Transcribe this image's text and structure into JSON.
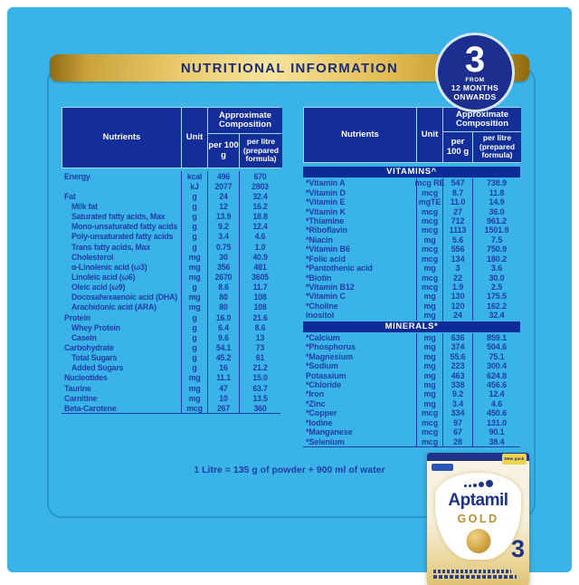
{
  "header": {
    "title": "NUTRITIONAL INFORMATION",
    "age_badge": {
      "number": "3",
      "line1": "FROM",
      "line2": "12 MONTHS",
      "line3": "ONWARDS"
    }
  },
  "table_headers": {
    "nutrients": "Nutrients",
    "unit": "Unit",
    "approx": "Approximate Composition",
    "per_100g": "per 100 g",
    "per_litre": "per litre (prepared formula)"
  },
  "left_table": {
    "rows": [
      [
        "Energy",
        "kcal",
        "496",
        "670",
        0
      ],
      [
        "",
        "kJ",
        "2077",
        "2803",
        0
      ],
      [
        "Fat",
        "g",
        "24",
        "32.4",
        0
      ],
      [
        "Milk fat",
        "g",
        "12",
        "16.2",
        1
      ],
      [
        "Saturated fatty acids, Max",
        "g",
        "13.9",
        "18.8",
        1
      ],
      [
        "Mono-unsaturated fatty acids",
        "g",
        "9.2",
        "12.4",
        1
      ],
      [
        "Poly-unsaturated fatty acids",
        "g",
        "3.4",
        "4.6",
        1
      ],
      [
        "Trans fatty acids, Max",
        "g",
        "0.75",
        "1.0",
        1
      ],
      [
        "Cholesterol",
        "mg",
        "30",
        "40.9",
        1
      ],
      [
        "α-Linolenic acid (ω3)",
        "mg",
        "356",
        "481",
        1
      ],
      [
        "Linoleic acid (ω6)",
        "mg",
        "2670",
        "3605",
        1
      ],
      [
        "Oleic acid (ω9)",
        "g",
        "8.6",
        "11.7",
        1
      ],
      [
        "Docosahexaenoic acid (DHA)",
        "mg",
        "80",
        "108",
        1
      ],
      [
        "Arachidonic acid (ARA)",
        "mg",
        "80",
        "108",
        1
      ],
      [
        "Protein",
        "g",
        "16.0",
        "21.6",
        0
      ],
      [
        "Whey Protein",
        "g",
        "6.4",
        "8.6",
        1
      ],
      [
        "Casein",
        "g",
        "9.6",
        "13",
        1
      ],
      [
        "Carbohydrate",
        "g",
        "54.1",
        "73",
        0
      ],
      [
        "Total Sugars",
        "g",
        "45.2",
        "61",
        1
      ],
      [
        "Added Sugars",
        "g",
        "16",
        "21.2",
        1
      ],
      [
        "Nucleotides",
        "mg",
        "11.1",
        "15.0",
        0
      ],
      [
        "Taurine",
        "mg",
        "47",
        "63.7",
        0
      ],
      [
        "Carnitine",
        "mg",
        "10",
        "13.5",
        0
      ],
      [
        "Beta-Carotene",
        "mcg",
        "267",
        "360",
        0
      ]
    ]
  },
  "right_table": {
    "sections": [
      {
        "title": "VITAMINS^",
        "rows": [
          [
            "*Vitamin A",
            "mcg RE",
            "547",
            "738.9",
            0
          ],
          [
            "*Vitamin D",
            "mcg",
            "8.7",
            "11.8",
            0
          ],
          [
            "*Vitamin E",
            "mgTE",
            "11.0",
            "14.9",
            0
          ],
          [
            "*Vitamin K",
            "mcg",
            "27",
            "36.0",
            0
          ],
          [
            "*Thiamine",
            "mcg",
            "712",
            "961.2",
            0
          ],
          [
            "*Riboflavin",
            "mcg",
            "1113",
            "1501.9",
            0
          ],
          [
            "*Niacin",
            "mg",
            "5.6",
            "7.5",
            0
          ],
          [
            "*Vitamin B6",
            "mcg",
            "556",
            "750.9",
            0
          ],
          [
            "*Folic acid",
            "mcg",
            "134",
            "180.2",
            0
          ],
          [
            "*Pantothenic acid",
            "mg",
            "3",
            "3.6",
            0
          ],
          [
            "*Biotin",
            "mcg",
            "22",
            "30.0",
            0
          ],
          [
            "*Vitamin B12",
            "mcg",
            "1.9",
            "2.5",
            0
          ],
          [
            "*Vitamin C",
            "mg",
            "130",
            "175.5",
            0
          ],
          [
            "*Choline",
            "mg",
            "120",
            "162.2",
            0
          ],
          [
            "Inositol",
            "mg",
            "24",
            "32.4",
            0
          ]
        ]
      },
      {
        "title": "MINERALS*",
        "rows": [
          [
            "*Calcium",
            "mg",
            "636",
            "859.1",
            0
          ],
          [
            "*Phosphorus",
            "mg",
            "374",
            "504.6",
            0
          ],
          [
            "*Magnesium",
            "mg",
            "55.6",
            "75.1",
            0
          ],
          [
            "*Sodium",
            "mg",
            "223",
            "300.4",
            0
          ],
          [
            "Potassium",
            "mg",
            "463",
            "624.8",
            0
          ],
          [
            "*Chloride",
            "mg",
            "338",
            "456.6",
            0
          ],
          [
            "*Iron",
            "mg",
            "9.2",
            "12.4",
            0
          ],
          [
            "*Zinc",
            "mg",
            "3.4",
            "4.6",
            0
          ],
          [
            "*Copper",
            "mcg",
            "334",
            "450.6",
            0
          ],
          [
            "*Iodine",
            "mcg",
            "97",
            "131.0",
            0
          ],
          [
            "*Manganese",
            "mcg",
            "67",
            "90.1",
            0
          ],
          [
            "*Selenium",
            "mcg",
            "28",
            "38.4",
            0
          ]
        ]
      }
    ]
  },
  "footer": {
    "note": "1 Litre = 135 g of powder + 900 ml of water"
  },
  "product": {
    "brand": "Aptamil",
    "variant": "GOLD",
    "stage": "3",
    "tag": "New pack"
  },
  "colors": {
    "background_cyan": "#3ab4e8",
    "navy": "#132e98",
    "text_navy": "#1d3da5",
    "gold": "#e3bc52",
    "box_cream": "#f5eeda",
    "tag_yellow": "#f0d44a"
  }
}
